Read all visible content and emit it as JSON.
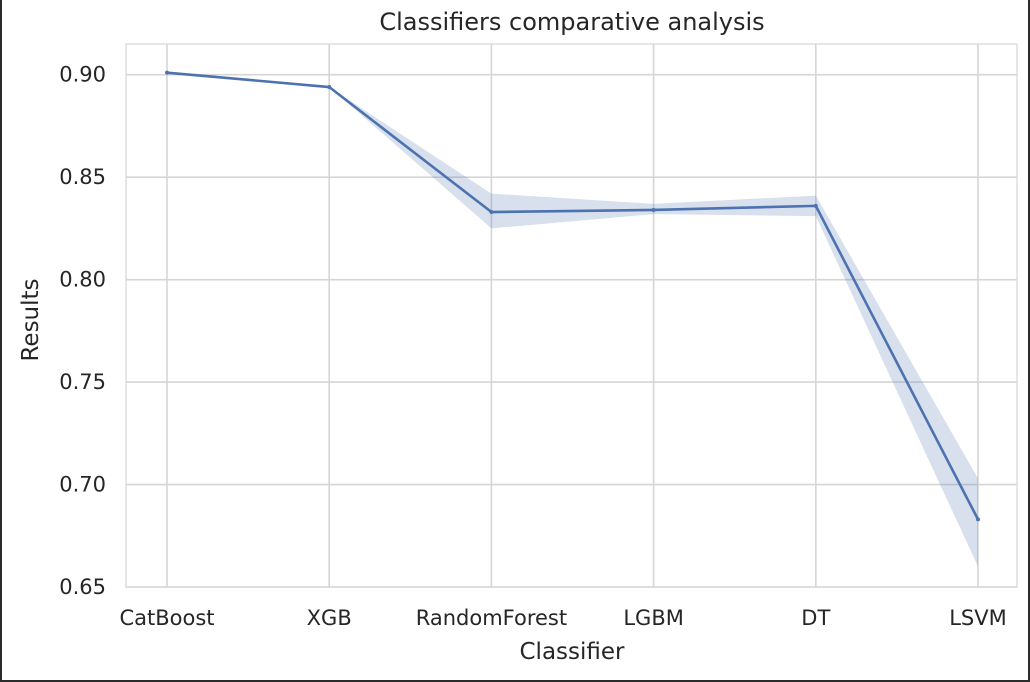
{
  "chart_data": {
    "type": "line",
    "title": "Classifiers comparative analysis",
    "xlabel": "Classifier",
    "ylabel": "Results",
    "categories": [
      "CatBoost",
      "XGB",
      "RandomForest",
      "LGBM",
      "DT",
      "LSVM"
    ],
    "series": [
      {
        "values": [
          0.901,
          0.894,
          0.833,
          0.834,
          0.836,
          0.683
        ],
        "ci_lower": [
          0.901,
          0.894,
          0.825,
          0.832,
          0.831,
          0.66
        ],
        "ci_upper": [
          0.901,
          0.894,
          0.842,
          0.837,
          0.841,
          0.703
        ]
      }
    ],
    "ylim": [
      0.65,
      0.915
    ],
    "yticks": [
      0.65,
      0.7,
      0.75,
      0.8,
      0.85,
      0.9
    ],
    "ytick_labels": [
      "0.65",
      "0.70",
      "0.75",
      "0.80",
      "0.85",
      "0.90"
    ],
    "grid": true,
    "line_color": "#4c72b0",
    "band_color": "#4c72b0",
    "grid_color": "#d6d6d6"
  }
}
